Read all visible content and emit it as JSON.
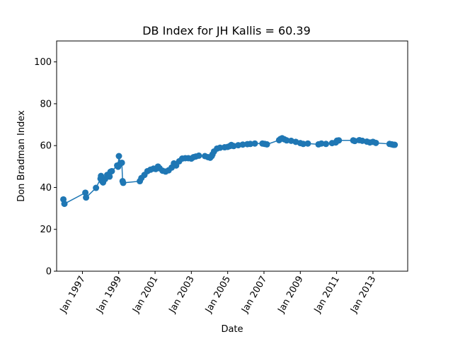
{
  "chart_data": {
    "type": "line",
    "title": "DB Index for JH Kallis = 60.39",
    "xlabel": "Date",
    "ylabel": "Don Bradman Index",
    "ylim": [
      0,
      110
    ],
    "xlim": [
      "1995-08-01",
      "2014-12-01"
    ],
    "y_ticks": [
      0,
      20,
      40,
      60,
      80,
      100
    ],
    "x_ticks": [
      {
        "date": "1997-01-01",
        "label": "Jan 1997"
      },
      {
        "date": "1999-01-01",
        "label": "Jan 1999"
      },
      {
        "date": "2001-01-01",
        "label": "Jan 2001"
      },
      {
        "date": "2003-01-01",
        "label": "Jan 2003"
      },
      {
        "date": "2005-01-01",
        "label": "Jan 2005"
      },
      {
        "date": "2007-01-01",
        "label": "Jan 2007"
      },
      {
        "date": "2009-01-01",
        "label": "Jan 2009"
      },
      {
        "date": "2011-01-01",
        "label": "Jan 2011"
      },
      {
        "date": "2013-01-01",
        "label": "Jan 2013"
      }
    ],
    "grid": false,
    "legend": "none",
    "series": [
      {
        "color": "#1f77b4",
        "points": [
          [
            "1995-12-15",
            34.3
          ],
          [
            "1996-01-05",
            32.2
          ],
          [
            "1997-03-01",
            37.5
          ],
          [
            "1997-03-15",
            35.2
          ],
          [
            "1997-10-01",
            39.8
          ],
          [
            "1998-01-01",
            44.2
          ],
          [
            "1998-01-10",
            45.5
          ],
          [
            "1998-02-01",
            43.0
          ],
          [
            "1998-02-20",
            42.4
          ],
          [
            "1998-04-01",
            44.0
          ],
          [
            "1998-05-15",
            46.0
          ],
          [
            "1998-07-01",
            45.2
          ],
          [
            "1998-07-20",
            47.5
          ],
          [
            "1998-08-15",
            47.8
          ],
          [
            "1998-12-01",
            50.5
          ],
          [
            "1998-12-20",
            49.9
          ],
          [
            "1999-01-05",
            55.0
          ],
          [
            "1999-02-01",
            51.4
          ],
          [
            "1999-03-05",
            51.8
          ],
          [
            "1999-03-20",
            43.0
          ],
          [
            "1999-04-01",
            42.2
          ],
          [
            "2000-03-01",
            43.0
          ],
          [
            "2000-04-01",
            44.5
          ],
          [
            "2000-06-01",
            46.0
          ],
          [
            "2000-08-01",
            47.8
          ],
          [
            "2000-10-01",
            48.5
          ],
          [
            "2000-12-01",
            49.0
          ],
          [
            "2001-01-15",
            48.8
          ],
          [
            "2001-03-01",
            50.0
          ],
          [
            "2001-04-01",
            49.2
          ],
          [
            "2001-06-01",
            48.0
          ],
          [
            "2001-08-01",
            47.6
          ],
          [
            "2001-10-01",
            48.2
          ],
          [
            "2001-12-01",
            49.5
          ],
          [
            "2002-01-15",
            51.5
          ],
          [
            "2002-03-01",
            50.5
          ],
          [
            "2002-05-01",
            52.5
          ],
          [
            "2002-07-01",
            53.8
          ],
          [
            "2002-09-01",
            54.0
          ],
          [
            "2002-11-01",
            54.0
          ],
          [
            "2003-01-01",
            53.8
          ],
          [
            "2003-02-15",
            54.5
          ],
          [
            "2003-04-01",
            54.8
          ],
          [
            "2003-06-01",
            55.2
          ],
          [
            "2003-10-01",
            55.0
          ],
          [
            "2003-12-01",
            54.5
          ],
          [
            "2004-01-15",
            54.2
          ],
          [
            "2004-02-15",
            55.0
          ],
          [
            "2004-03-01",
            55.8
          ],
          [
            "2004-04-01",
            57.2
          ],
          [
            "2004-06-01",
            58.6
          ],
          [
            "2004-08-01",
            59.0
          ],
          [
            "2004-11-01",
            59.2
          ],
          [
            "2005-01-01",
            59.4
          ],
          [
            "2005-02-15",
            59.8
          ],
          [
            "2005-03-15",
            60.3
          ],
          [
            "2005-05-01",
            59.8
          ],
          [
            "2005-08-01",
            60.2
          ],
          [
            "2005-11-01",
            60.5
          ],
          [
            "2006-02-01",
            60.7
          ],
          [
            "2006-04-01",
            60.8
          ],
          [
            "2006-07-01",
            61.0
          ],
          [
            "2006-12-01",
            61.0
          ],
          [
            "2007-01-15",
            60.8
          ],
          [
            "2007-03-01",
            60.6
          ],
          [
            "2007-11-01",
            62.6
          ],
          [
            "2007-12-01",
            63.2
          ],
          [
            "2008-01-01",
            63.5
          ],
          [
            "2008-02-15",
            63.0
          ],
          [
            "2008-04-01",
            62.5
          ],
          [
            "2008-07-01",
            62.3
          ],
          [
            "2008-10-01",
            61.8
          ],
          [
            "2009-01-01",
            61.2
          ],
          [
            "2009-03-01",
            60.8
          ],
          [
            "2009-06-01",
            61.0
          ],
          [
            "2010-01-01",
            60.6
          ],
          [
            "2010-03-01",
            61.0
          ],
          [
            "2010-06-01",
            60.8
          ],
          [
            "2010-10-01",
            61.2
          ],
          [
            "2010-12-15",
            61.5
          ],
          [
            "2011-01-10",
            62.4
          ],
          [
            "2011-02-15",
            62.5
          ],
          [
            "2011-12-01",
            62.5
          ],
          [
            "2012-01-01",
            62.2
          ],
          [
            "2012-04-01",
            62.6
          ],
          [
            "2012-06-01",
            62.3
          ],
          [
            "2012-09-01",
            61.9
          ],
          [
            "2012-11-01",
            61.5
          ],
          [
            "2013-01-01",
            61.8
          ],
          [
            "2013-03-01",
            61.3
          ],
          [
            "2013-12-01",
            60.8
          ],
          [
            "2014-01-15",
            60.6
          ],
          [
            "2014-02-15",
            60.4
          ],
          [
            "2014-03-15",
            60.39
          ]
        ]
      }
    ]
  }
}
